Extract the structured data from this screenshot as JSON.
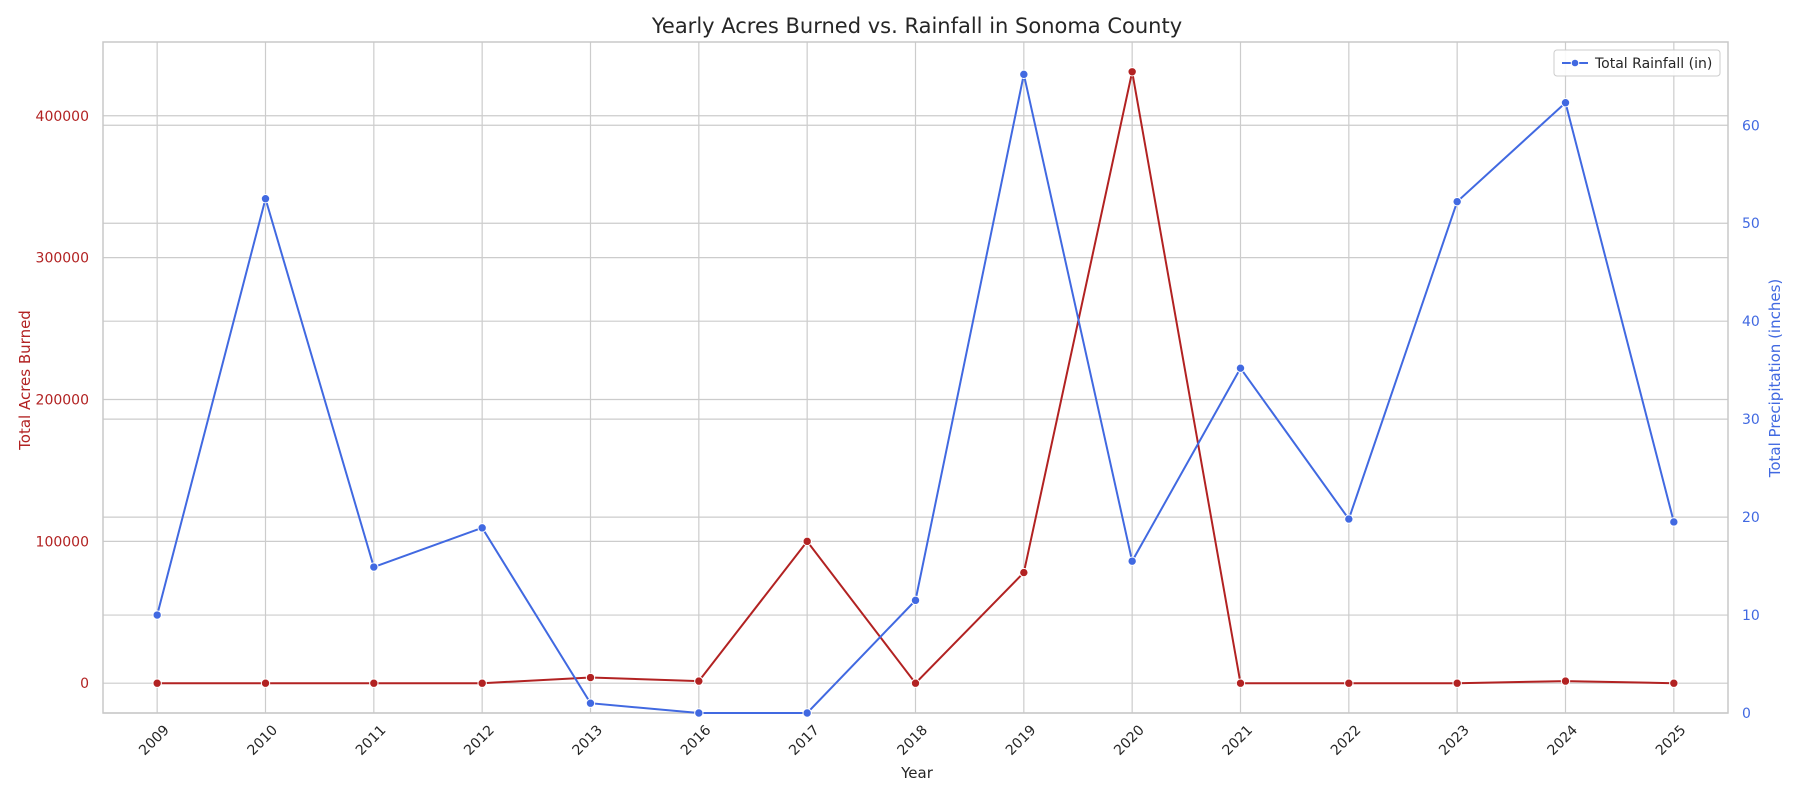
{
  "chart_data": {
    "type": "line",
    "title": "Yearly Acres Burned vs. Rainfall in Sonoma County",
    "xlabel": "Year",
    "ylabel_left": "Total Acres Burned",
    "ylabel_right": "Total Precipitation (inches)",
    "categories": [
      "2009",
      "2010",
      "2011",
      "2012",
      "2013",
      "2016",
      "2017",
      "2018",
      "2019",
      "2020",
      "2021",
      "2022",
      "2023",
      "2024",
      "2025"
    ],
    "ylim_left": [
      -21000,
      452000
    ],
    "yticks_left": [
      0,
      100000,
      200000,
      300000,
      400000
    ],
    "ylim_right": [
      0,
      68.5
    ],
    "yticks_right": [
      0,
      10,
      20,
      30,
      40,
      50,
      60
    ],
    "grid": true,
    "legend_position": "top-right",
    "series": [
      {
        "axis": "left",
        "color": "#b22222",
        "values": [
          0,
          0,
          0,
          0,
          4000,
          1500,
          100000,
          0,
          78000,
          431000,
          0,
          0,
          0,
          1500,
          0
        ]
      },
      {
        "name": "Total Rainfall (in)",
        "axis": "right",
        "color": "#4169e1",
        "values": [
          10.0,
          52.5,
          14.9,
          18.9,
          1.0,
          0.0,
          0.0,
          11.5,
          65.2,
          15.5,
          35.2,
          19.8,
          52.2,
          62.3,
          19.5
        ]
      }
    ]
  }
}
